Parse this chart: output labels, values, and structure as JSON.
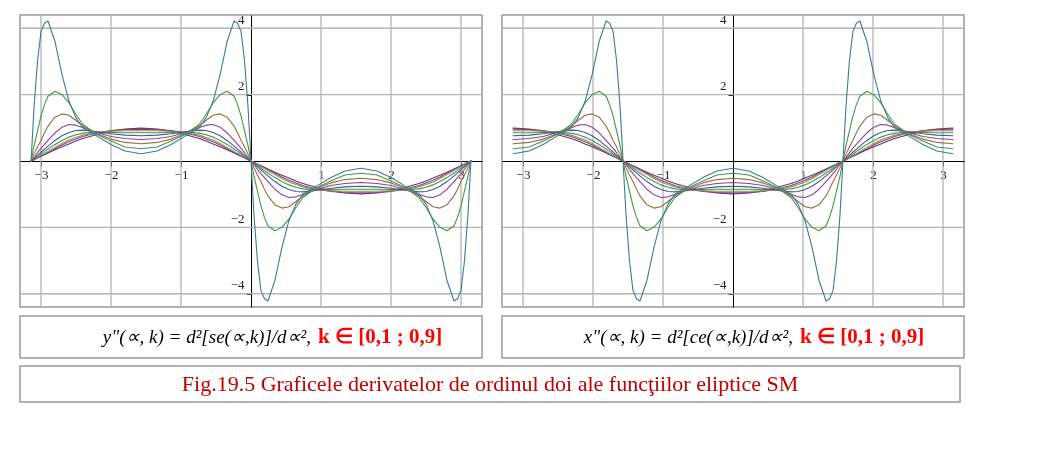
{
  "chart_data": [
    {
      "type": "line",
      "title": "y\"(∝, k) = d²[se(∝,k)]/d∝²,",
      "subtitle": "k ∈ [0,1 ; 0,9]",
      "annotations": [
        "Fig.19.5 Graficele derivatelor de ordinul doi ale funcţiilor eliptice SM"
      ],
      "xlim": [
        -3.3,
        3.3
      ],
      "ylim": [
        -4.4,
        4.4
      ],
      "xticks": [
        -3,
        -2,
        -1,
        1,
        2,
        3
      ],
      "yticks": [
        -4,
        -2,
        2,
        4
      ],
      "grid": true,
      "x": [
        -3.1416,
        -3.1,
        -3.05,
        -3.0,
        -2.95,
        -2.9,
        -2.8,
        -2.7,
        -2.6,
        -2.5,
        -2.4,
        -2.2,
        -2.0,
        -1.8,
        -1.5708,
        -1.3416,
        -1.1416,
        -0.9416,
        -0.7416,
        -0.6416,
        -0.5416,
        -0.4416,
        -0.3416,
        -0.2416,
        -0.1916,
        -0.1416,
        -0.0916,
        -0.0416,
        0,
        0.0416,
        0.0916,
        0.1416,
        0.1916,
        0.2416,
        0.3416,
        0.4416,
        0.5416,
        0.6416,
        0.7416,
        0.9416,
        1.1416,
        1.3416,
        1.5708,
        1.8,
        2.0,
        2.2,
        2.4,
        2.5,
        2.6,
        2.7,
        2.8,
        2.9,
        2.95,
        3.0,
        3.05,
        3.1,
        3.1416
      ],
      "series": [
        {
          "color": "#3f3d99",
          "values": [
            0,
            0.04,
            0.09,
            0.14,
            0.19,
            0.24,
            0.34,
            0.43,
            0.51,
            0.6,
            0.68,
            0.8,
            0.9,
            0.96,
            0.99,
            0.96,
            0.9,
            0.8,
            0.68,
            0.6,
            0.51,
            0.43,
            0.34,
            0.24,
            0.19,
            0.14,
            0.09,
            0.04,
            0,
            -0.04,
            -0.09,
            -0.14,
            -0.19,
            -0.24,
            -0.34,
            -0.43,
            -0.51,
            -0.6,
            -0.68,
            -0.8,
            -0.9,
            -0.96,
            -0.99,
            -0.96,
            -0.9,
            -0.8,
            -0.68,
            -0.6,
            -0.51,
            -0.43,
            -0.34,
            -0.24,
            -0.19,
            -0.14,
            -0.09,
            -0.04,
            0
          ]
        },
        {
          "color": "#993d71",
          "values": [
            0,
            0.04,
            0.09,
            0.14,
            0.2,
            0.26,
            0.37,
            0.48,
            0.58,
            0.66,
            0.74,
            0.85,
            0.92,
            0.95,
            0.96,
            0.95,
            0.92,
            0.85,
            0.74,
            0.66,
            0.58,
            0.48,
            0.37,
            0.26,
            0.2,
            0.14,
            0.09,
            0.04,
            0,
            -0.04,
            -0.09,
            -0.14,
            -0.2,
            -0.26,
            -0.37,
            -0.48,
            -0.58,
            -0.66,
            -0.74,
            -0.85,
            -0.92,
            -0.95,
            -0.96,
            -0.95,
            -0.92,
            -0.85,
            -0.74,
            -0.66,
            -0.58,
            -0.48,
            -0.37,
            -0.26,
            -0.2,
            -0.14,
            -0.09,
            -0.04,
            0
          ]
        },
        {
          "color": "#998b3d",
          "values": [
            0,
            0.04,
            0.1,
            0.17,
            0.23,
            0.29,
            0.41,
            0.53,
            0.63,
            0.71,
            0.78,
            0.86,
            0.9,
            0.91,
            0.91,
            0.91,
            0.9,
            0.86,
            0.78,
            0.71,
            0.63,
            0.53,
            0.41,
            0.29,
            0.23,
            0.17,
            0.1,
            0.04,
            0,
            -0.04,
            -0.1,
            -0.17,
            -0.23,
            -0.29,
            -0.41,
            -0.53,
            -0.63,
            -0.71,
            -0.78,
            -0.86,
            -0.9,
            -0.91,
            -0.91,
            -0.91,
            -0.9,
            -0.86,
            -0.78,
            -0.71,
            -0.63,
            -0.53,
            -0.41,
            -0.29,
            -0.23,
            -0.17,
            -0.1,
            -0.04,
            0
          ]
        },
        {
          "color": "#3d9956",
          "values": [
            0,
            0.05,
            0.13,
            0.21,
            0.29,
            0.36,
            0.5,
            0.62,
            0.72,
            0.79,
            0.84,
            0.87,
            0.86,
            0.85,
            0.85,
            0.85,
            0.86,
            0.87,
            0.84,
            0.79,
            0.72,
            0.62,
            0.5,
            0.36,
            0.29,
            0.21,
            0.13,
            0.05,
            0,
            -0.05,
            -0.13,
            -0.21,
            -0.29,
            -0.36,
            -0.5,
            -0.62,
            -0.72,
            -0.79,
            -0.84,
            -0.87,
            -0.86,
            -0.85,
            -0.85,
            -0.85,
            -0.86,
            -0.87,
            -0.84,
            -0.79,
            -0.72,
            -0.62,
            -0.5,
            -0.36,
            -0.29,
            -0.21,
            -0.13,
            -0.05,
            0
          ]
        },
        {
          "color": "#3d5a99",
          "values": [
            0,
            0.07,
            0.17,
            0.27,
            0.36,
            0.45,
            0.62,
            0.76,
            0.86,
            0.92,
            0.93,
            0.88,
            0.82,
            0.78,
            0.76,
            0.78,
            0.82,
            0.88,
            0.93,
            0.92,
            0.86,
            0.76,
            0.62,
            0.45,
            0.36,
            0.27,
            0.17,
            0.07,
            0,
            -0.07,
            -0.17,
            -0.27,
            -0.36,
            -0.45,
            -0.62,
            -0.76,
            -0.86,
            -0.92,
            -0.93,
            -0.88,
            -0.82,
            -0.78,
            -0.76,
            -0.78,
            -0.82,
            -0.88,
            -0.93,
            -0.92,
            -0.86,
            -0.76,
            -0.62,
            -0.45,
            -0.36,
            -0.27,
            -0.17,
            -0.07,
            0
          ]
        },
        {
          "color": "#993d90",
          "values": [
            0,
            0.1,
            0.25,
            0.38,
            0.5,
            0.62,
            0.85,
            1.02,
            1.1,
            1.08,
            1.0,
            0.86,
            0.74,
            0.68,
            0.65,
            0.68,
            0.74,
            0.86,
            1.0,
            1.08,
            1.1,
            1.02,
            0.85,
            0.62,
            0.5,
            0.38,
            0.25,
            0.1,
            0,
            -0.1,
            -0.25,
            -0.38,
            -0.5,
            -0.62,
            -0.85,
            -1.02,
            -1.1,
            -1.08,
            -1.0,
            -0.86,
            -0.74,
            -0.68,
            -0.65,
            -0.68,
            -0.74,
            -0.86,
            -1.0,
            -1.08,
            -1.1,
            -1.02,
            -0.85,
            -0.62,
            -0.5,
            -0.38,
            -0.25,
            -0.1,
            0
          ]
        },
        {
          "color": "#996d3d",
          "values": [
            0,
            0.2,
            0.42,
            0.62,
            0.85,
            1.05,
            1.32,
            1.42,
            1.38,
            1.22,
            1.05,
            0.82,
            0.66,
            0.56,
            0.52,
            0.56,
            0.66,
            0.82,
            1.05,
            1.22,
            1.38,
            1.42,
            1.32,
            1.05,
            0.85,
            0.62,
            0.42,
            0.2,
            0,
            -0.2,
            -0.42,
            -0.62,
            -0.85,
            -1.05,
            -1.32,
            -1.42,
            -1.38,
            -1.22,
            -1.05,
            -0.82,
            -0.66,
            -0.56,
            -0.52,
            -0.56,
            -0.66,
            -0.82,
            -1.05,
            -1.22,
            -1.38,
            -1.42,
            -1.32,
            -1.05,
            -0.85,
            -0.62,
            -0.42,
            -0.2,
            0
          ]
        },
        {
          "color": "#43993d",
          "values": [
            0,
            0.45,
            0.9,
            1.35,
            1.7,
            1.95,
            2.1,
            2.0,
            1.75,
            1.4,
            1.1,
            0.8,
            0.6,
            0.42,
            0.37,
            0.42,
            0.6,
            0.8,
            1.1,
            1.4,
            1.75,
            2.0,
            2.1,
            1.95,
            1.7,
            1.35,
            0.9,
            0.45,
            0,
            -0.45,
            -0.9,
            -1.35,
            -1.7,
            -1.95,
            -2.1,
            -2.0,
            -1.75,
            -1.4,
            -1.1,
            -0.8,
            -0.6,
            -0.42,
            -0.37,
            -0.42,
            -0.6,
            -0.8,
            -1.1,
            -1.4,
            -1.75,
            -2.0,
            -2.1,
            -1.95,
            -1.7,
            -1.35,
            -0.9,
            -0.45,
            0
          ]
        },
        {
          "color": "#3d7999",
          "values": [
            0,
            1.6,
            3.0,
            3.9,
            4.15,
            4.22,
            3.6,
            2.6,
            1.8,
            1.3,
            1.0,
            0.75,
            0.5,
            0.3,
            0.22,
            0.3,
            0.5,
            0.75,
            1.0,
            1.3,
            1.8,
            2.6,
            3.6,
            4.22,
            4.15,
            3.9,
            3.0,
            1.6,
            0,
            -1.6,
            -3.0,
            -3.9,
            -4.15,
            -4.22,
            -3.6,
            -2.6,
            -1.8,
            -1.3,
            -1.0,
            -0.75,
            -0.5,
            -0.3,
            -0.22,
            -0.3,
            -0.5,
            -0.75,
            -1.0,
            -1.3,
            -1.8,
            -2.6,
            -3.6,
            -4.22,
            -4.15,
            -3.9,
            -3.0,
            -1.6,
            0
          ]
        }
      ]
    },
    {
      "type": "line",
      "title": "x\"(∝, k) = d²[ce(∝,k)]/d∝²,",
      "subtitle": "k ∈ [0,1 ; 0,9]",
      "xlim": [
        -3.3,
        3.3
      ],
      "ylim": [
        -4.4,
        4.4
      ],
      "xticks": [
        -3,
        -2,
        -1,
        1,
        2,
        3
      ],
      "yticks": [
        -4,
        -2,
        2,
        4
      ],
      "grid": true,
      "x": [
        -3.1416,
        -2.9124,
        -2.7124,
        -2.5124,
        -2.3124,
        -2.2124,
        -2.1124,
        -2.0124,
        -1.9124,
        -1.8124,
        -1.7624,
        -1.7124,
        -1.6624,
        -1.6124,
        -1.5708,
        -1.5292,
        -1.4792,
        -1.4292,
        -1.3792,
        -1.3292,
        -1.2292,
        -1.1292,
        -1.0292,
        -0.9292,
        -0.8292,
        -0.6292,
        -0.4292,
        -0.2292,
        0,
        0.2292,
        0.4292,
        0.6292,
        0.8292,
        0.9292,
        1.0292,
        1.1292,
        1.2292,
        1.3292,
        1.3792,
        1.4292,
        1.4792,
        1.5292,
        1.5708,
        1.6124,
        1.6624,
        1.7124,
        1.7624,
        1.8124,
        1.9124,
        2.0124,
        2.1124,
        2.2124,
        2.3124,
        2.5124,
        2.7124,
        2.9124,
        3.1416
      ],
      "series": [
        {
          "color": "#3f3d99",
          "values": [
            0.99,
            0.96,
            0.9,
            0.8,
            0.68,
            0.6,
            0.51,
            0.43,
            0.34,
            0.24,
            0.19,
            0.14,
            0.09,
            0.04,
            0,
            -0.04,
            -0.09,
            -0.14,
            -0.19,
            -0.24,
            -0.34,
            -0.43,
            -0.51,
            -0.6,
            -0.68,
            -0.8,
            -0.9,
            -0.96,
            -0.99,
            -0.96,
            -0.9,
            -0.8,
            -0.68,
            -0.6,
            -0.51,
            -0.43,
            -0.34,
            -0.24,
            -0.19,
            -0.14,
            -0.09,
            -0.04,
            0,
            0.04,
            0.09,
            0.14,
            0.19,
            0.24,
            0.34,
            0.43,
            0.51,
            0.6,
            0.68,
            0.8,
            0.9,
            0.96,
            0.99
          ]
        },
        {
          "color": "#993d71",
          "values": [
            0.96,
            0.95,
            0.92,
            0.85,
            0.74,
            0.66,
            0.58,
            0.48,
            0.37,
            0.26,
            0.2,
            0.14,
            0.09,
            0.04,
            0,
            -0.04,
            -0.09,
            -0.14,
            -0.2,
            -0.26,
            -0.37,
            -0.48,
            -0.58,
            -0.66,
            -0.74,
            -0.85,
            -0.92,
            -0.95,
            -0.96,
            -0.95,
            -0.92,
            -0.85,
            -0.74,
            -0.66,
            -0.58,
            -0.48,
            -0.37,
            -0.26,
            -0.2,
            -0.14,
            -0.09,
            -0.04,
            0,
            0.04,
            0.09,
            0.14,
            0.2,
            0.26,
            0.37,
            0.48,
            0.58,
            0.66,
            0.74,
            0.85,
            0.92,
            0.95,
            0.96
          ]
        },
        {
          "color": "#998b3d",
          "values": [
            0.91,
            0.91,
            0.9,
            0.86,
            0.78,
            0.71,
            0.63,
            0.53,
            0.41,
            0.29,
            0.23,
            0.17,
            0.1,
            0.04,
            0,
            -0.04,
            -0.1,
            -0.17,
            -0.23,
            -0.29,
            -0.41,
            -0.53,
            -0.63,
            -0.71,
            -0.78,
            -0.86,
            -0.9,
            -0.91,
            -0.91,
            -0.91,
            -0.9,
            -0.86,
            -0.78,
            -0.71,
            -0.63,
            -0.53,
            -0.41,
            -0.29,
            -0.23,
            -0.17,
            -0.1,
            -0.04,
            0,
            0.04,
            0.1,
            0.17,
            0.23,
            0.29,
            0.41,
            0.53,
            0.63,
            0.71,
            0.78,
            0.86,
            0.9,
            0.91,
            0.91
          ]
        },
        {
          "color": "#3d9956",
          "values": [
            0.85,
            0.85,
            0.86,
            0.87,
            0.84,
            0.79,
            0.72,
            0.62,
            0.5,
            0.36,
            0.29,
            0.21,
            0.13,
            0.05,
            0,
            -0.05,
            -0.13,
            -0.21,
            -0.29,
            -0.36,
            -0.5,
            -0.62,
            -0.72,
            -0.79,
            -0.84,
            -0.87,
            -0.86,
            -0.85,
            -0.85,
            -0.85,
            -0.86,
            -0.87,
            -0.84,
            -0.79,
            -0.72,
            -0.62,
            -0.5,
            -0.36,
            -0.29,
            -0.21,
            -0.13,
            -0.05,
            0,
            0.05,
            0.13,
            0.21,
            0.29,
            0.36,
            0.5,
            0.62,
            0.72,
            0.79,
            0.84,
            0.87,
            0.86,
            0.85,
            0.85
          ]
        },
        {
          "color": "#3d5a99",
          "values": [
            0.76,
            0.78,
            0.82,
            0.88,
            0.93,
            0.92,
            0.86,
            0.76,
            0.62,
            0.45,
            0.36,
            0.27,
            0.17,
            0.07,
            0,
            -0.07,
            -0.17,
            -0.27,
            -0.36,
            -0.45,
            -0.62,
            -0.76,
            -0.86,
            -0.92,
            -0.93,
            -0.88,
            -0.82,
            -0.78,
            -0.76,
            -0.78,
            -0.82,
            -0.88,
            -0.93,
            -0.92,
            -0.86,
            -0.76,
            -0.62,
            -0.45,
            -0.36,
            -0.27,
            -0.17,
            -0.07,
            0,
            0.07,
            0.17,
            0.27,
            0.36,
            0.45,
            0.62,
            0.76,
            0.86,
            0.92,
            0.93,
            0.88,
            0.82,
            0.78,
            0.76
          ]
        },
        {
          "color": "#993d90",
          "values": [
            0.65,
            0.68,
            0.74,
            0.86,
            1.0,
            1.08,
            1.1,
            1.02,
            0.85,
            0.62,
            0.5,
            0.38,
            0.25,
            0.1,
            0,
            -0.1,
            -0.25,
            -0.38,
            -0.5,
            -0.62,
            -0.85,
            -1.02,
            -1.1,
            -1.08,
            -1.0,
            -0.86,
            -0.74,
            -0.68,
            -0.65,
            -0.68,
            -0.74,
            -0.86,
            -1.0,
            -1.08,
            -1.1,
            -1.02,
            -0.85,
            -0.62,
            -0.5,
            -0.38,
            -0.25,
            -0.1,
            0,
            0.1,
            0.25,
            0.38,
            0.5,
            0.62,
            0.85,
            1.02,
            1.1,
            1.08,
            1.0,
            0.86,
            0.74,
            0.68,
            0.65
          ]
        },
        {
          "color": "#996d3d",
          "values": [
            0.52,
            0.56,
            0.66,
            0.82,
            1.05,
            1.22,
            1.38,
            1.42,
            1.32,
            1.05,
            0.85,
            0.62,
            0.42,
            0.2,
            0,
            -0.2,
            -0.42,
            -0.62,
            -0.85,
            -1.05,
            -1.32,
            -1.42,
            -1.38,
            -1.22,
            -1.05,
            -0.82,
            -0.66,
            -0.56,
            -0.52,
            -0.56,
            -0.66,
            -0.82,
            -1.05,
            -1.22,
            -1.38,
            -1.42,
            -1.32,
            -1.05,
            -0.85,
            -0.62,
            -0.42,
            -0.2,
            0,
            0.2,
            0.42,
            0.62,
            0.85,
            1.05,
            1.32,
            1.42,
            1.38,
            1.22,
            1.05,
            0.82,
            0.66,
            0.56,
            0.52
          ]
        },
        {
          "color": "#43993d",
          "values": [
            0.37,
            0.42,
            0.6,
            0.8,
            1.1,
            1.4,
            1.75,
            2.0,
            2.1,
            1.95,
            1.7,
            1.35,
            0.9,
            0.45,
            0,
            -0.45,
            -0.9,
            -1.35,
            -1.7,
            -1.95,
            -2.1,
            -2.0,
            -1.75,
            -1.4,
            -1.1,
            -0.8,
            -0.6,
            -0.42,
            -0.37,
            -0.42,
            -0.6,
            -0.8,
            -1.1,
            -1.4,
            -1.75,
            -2.0,
            -2.1,
            -1.95,
            -1.7,
            -1.35,
            -0.9,
            -0.45,
            0,
            0.45,
            0.9,
            1.35,
            1.7,
            1.95,
            2.1,
            2.0,
            1.75,
            1.4,
            1.1,
            0.8,
            0.6,
            0.42,
            0.37
          ]
        },
        {
          "color": "#3d7999",
          "values": [
            0.22,
            0.3,
            0.5,
            0.75,
            1.0,
            1.3,
            1.8,
            2.6,
            3.6,
            4.22,
            4.15,
            3.9,
            3.0,
            1.6,
            0,
            -1.6,
            -3.0,
            -3.9,
            -4.15,
            -4.22,
            -3.6,
            -2.6,
            -1.8,
            -1.3,
            -1.0,
            -0.75,
            -0.5,
            -0.3,
            -0.22,
            -0.3,
            -0.5,
            -0.75,
            -1.0,
            -1.3,
            -1.8,
            -2.6,
            -3.6,
            -4.22,
            -4.15,
            -3.9,
            -3.0,
            -1.6,
            0,
            1.6,
            3.0,
            3.9,
            4.15,
            4.22,
            3.6,
            2.6,
            1.8,
            1.3,
            1.0,
            0.75,
            0.5,
            0.3,
            0.22
          ]
        }
      ]
    }
  ]
}
